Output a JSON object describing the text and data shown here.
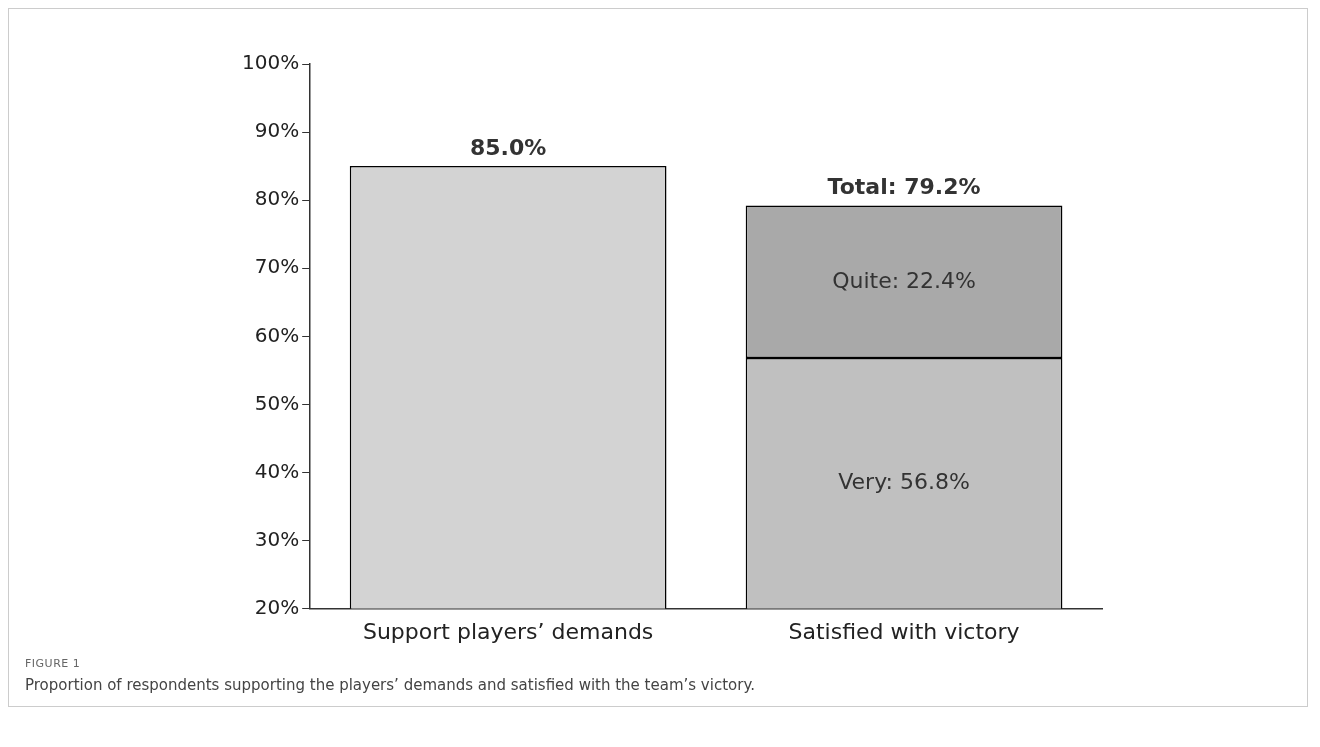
{
  "chart_data": {
    "type": "bar",
    "stacked": true,
    "categories": [
      "Support players’ demands",
      "Satisfied with victory"
    ],
    "series": [
      {
        "color": "#d3d3d3",
        "values": [
          85.0,
          null
        ]
      },
      {
        "color": "#c0c0c0",
        "values": [
          null,
          56.8
        ],
        "value_labels": [
          null,
          "Very: 56.8%"
        ]
      },
      {
        "color": "#a9a9a9",
        "values": [
          null,
          22.4
        ],
        "value_labels": [
          null,
          "Quite: 22.4%"
        ]
      }
    ],
    "totals": [
      "85.0%",
      "Total: 79.2%"
    ],
    "ylim": [
      20,
      100
    ],
    "yticks": [
      {
        "value": 20,
        "label": "20%"
      },
      {
        "value": 30,
        "label": "30%"
      },
      {
        "value": 40,
        "label": "40%"
      },
      {
        "value": 50,
        "label": "50%"
      },
      {
        "value": 60,
        "label": "60%"
      },
      {
        "value": 70,
        "label": "70%"
      },
      {
        "value": 80,
        "label": "80%"
      },
      {
        "value": 90,
        "label": "90%"
      },
      {
        "value": 100,
        "label": "100%"
      }
    ],
    "grid": false,
    "legend": false,
    "annotations": [
      "FIGURE 1",
      "Proportion of respondents supporting the players’ demands and satisfied with the team’s victory."
    ]
  }
}
